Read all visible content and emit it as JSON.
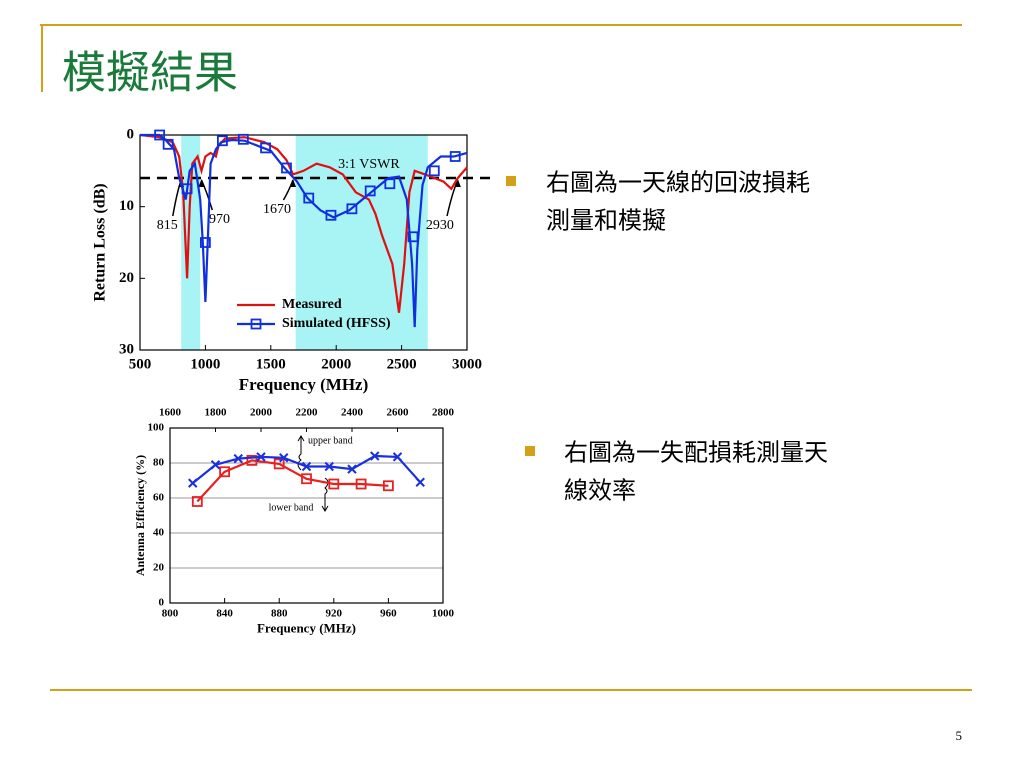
{
  "title": "模擬結果",
  "bullets": [
    "右圖為一天線的回波損耗",
    "測量和模擬",
    "右圖為一失配損耗測量天",
    "線效率"
  ],
  "page_number": "5",
  "chart_data": [
    {
      "type": "line",
      "xlabel": "Frequency (MHz)",
      "ylabel": "Return Loss (dB)",
      "xlim": [
        500,
        3000
      ],
      "xticks": [
        500,
        1000,
        1500,
        2000,
        2500,
        3000
      ],
      "ylim": [
        0,
        30
      ],
      "yticks": [
        0,
        10,
        20,
        30
      ],
      "y_inverted": true,
      "grid": false,
      "bands": [
        [
          815,
          960
        ],
        [
          1690,
          2700
        ]
      ],
      "band_color": "#a8f4f4",
      "hline": 6,
      "hline_label": "3:1 VSWR",
      "annotations": [
        {
          "label": "815",
          "x": 815
        },
        {
          "label": "970",
          "x": 970
        },
        {
          "label": "1670",
          "x": 1670
        },
        {
          "label": "2930",
          "x": 2930
        }
      ],
      "legend": "lower right",
      "series": [
        {
          "name": "Measured",
          "color": "#e01010",
          "x": [
            500,
            650,
            750,
            800,
            830,
            860,
            880,
            900,
            940,
            970,
            1000,
            1040,
            1080,
            1100,
            1150,
            1300,
            1450,
            1550,
            1620,
            1670,
            1750,
            1850,
            1950,
            2050,
            2150,
            2250,
            2300,
            2350,
            2430,
            2480,
            2520,
            2560,
            2600,
            2680,
            2750,
            2820,
            2880,
            2930,
            3000
          ],
          "values": [
            0,
            0.3,
            1,
            3,
            8,
            20,
            10,
            4,
            3,
            5,
            3,
            2.5,
            3,
            1.5,
            0.5,
            0.3,
            1,
            2,
            3.5,
            5.5,
            5,
            4,
            4.5,
            5.5,
            8,
            9,
            11,
            14,
            18,
            24.8,
            18,
            8,
            5,
            5.5,
            6,
            6.5,
            7.5,
            6,
            4.5
          ]
        },
        {
          "name": "Simulated (HFSS)",
          "color": "#1030e0",
          "marker": "square",
          "x": [
            500,
            650,
            700,
            760,
            800,
            850,
            880,
            920,
            960,
            980,
            1000,
            1020,
            1040,
            1080,
            1120,
            1200,
            1300,
            1400,
            1500,
            1600,
            1650,
            1700,
            1780,
            1880,
            1980,
            2100,
            2200,
            2300,
            2400,
            2480,
            2540,
            2580,
            2600,
            2620,
            2660,
            2700,
            2800,
            2900,
            3000
          ],
          "values": [
            0,
            0,
            0.8,
            2,
            6,
            9,
            5,
            4,
            9,
            15,
            23.3,
            14,
            4,
            2,
            1,
            0.7,
            0.8,
            1.5,
            2.2,
            4.5,
            5.5,
            6.5,
            8.8,
            10.5,
            11.5,
            10.5,
            9,
            7.5,
            6,
            5.8,
            9,
            18,
            26.8,
            16,
            7,
            4.5,
            3,
            3,
            2.5
          ],
          "markers": {
            "x": [
              650,
              715,
              860,
              1000,
              1130,
              1290,
              1460,
              1620,
              1790,
              1960,
              2120,
              2260,
              2410,
              2587,
              2750,
              2910
            ],
            "values": [
              0,
              1.3,
              7.5,
              15,
              0.8,
              0.6,
              1.8,
              4.6,
              8.8,
              11.2,
              10.3,
              7.8,
              6.8,
              14.2,
              5,
              3
            ]
          }
        }
      ]
    },
    {
      "type": "line",
      "xlabel": "Frequency (MHz)",
      "ylabel": "Antenna Efficiency (%)",
      "xlim": [
        800,
        1000
      ],
      "xticks": [
        800,
        840,
        880,
        920,
        960,
        1000
      ],
      "x2lim": [
        1600,
        2800
      ],
      "x2ticks": [
        1600,
        1800,
        2000,
        2200,
        2400,
        2600,
        2800
      ],
      "ylim": [
        0,
        100
      ],
      "yticks": [
        0,
        20,
        40,
        60,
        80,
        100
      ],
      "grid": true,
      "annotations": [
        {
          "label": "upper band"
        },
        {
          "label": "lower band"
        }
      ],
      "series": [
        {
          "color": "#e82020",
          "marker": "square",
          "x": [
            820,
            840,
            860,
            880,
            900,
            920,
            940,
            960
          ],
          "values": [
            58,
            75,
            81.5,
            79.5,
            71,
            68,
            68,
            67
          ]
        },
        {
          "color": "#1a30e0",
          "marker": "x",
          "axis": "x2",
          "x": [
            1700,
            1800,
            1900,
            2000,
            2100,
            2200,
            2300,
            2400,
            2500,
            2600,
            2700
          ],
          "values": [
            68.5,
            79,
            82.5,
            83.5,
            83,
            78,
            78,
            76.5,
            84,
            83.5,
            69
          ]
        }
      ]
    }
  ]
}
